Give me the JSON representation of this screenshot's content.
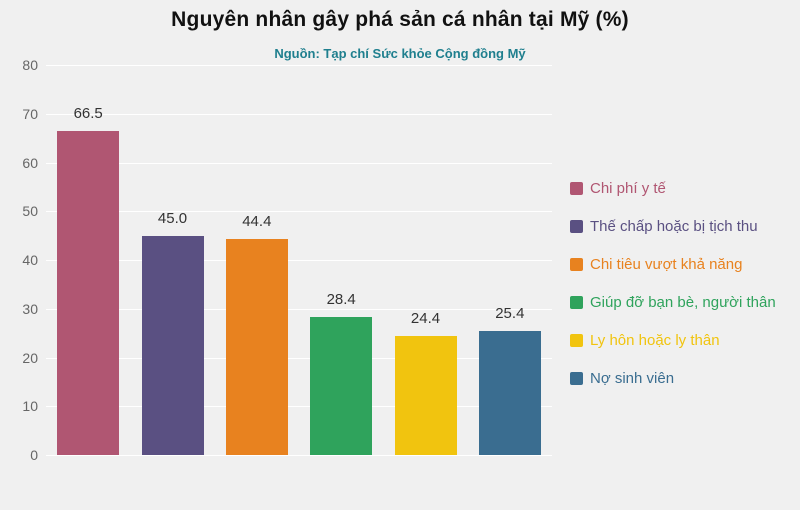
{
  "title": "Nguyên nhân gây phá sản cá nhân tại Mỹ (%)",
  "subtitle": "Nguồn: Tạp chí Sức khỏe Cộng đồng Mỹ",
  "chart_data": {
    "type": "bar",
    "title": "Nguyên nhân gây phá sản cá nhân tại Mỹ (%)",
    "subtitle": "Nguồn: Tạp chí Sức khỏe Cộng đồng Mỹ",
    "categories": [
      "Chi phí y tế",
      "Thế chấp hoặc bị tịch thu",
      "Chi tiêu vượt khả năng",
      "Giúp đỡ bạn bè, người thân",
      "Ly hôn hoặc ly thân",
      "Nợ sinh viên"
    ],
    "values": [
      66.5,
      45,
      44.4,
      28.4,
      24.4,
      25.4
    ],
    "value_labels": [
      "66.5",
      "45.0",
      "44.4",
      "28.4",
      "24.4",
      "25.4"
    ],
    "colors": [
      "#b05672",
      "#5a5082",
      "#e8821f",
      "#2fa35c",
      "#f1c40f",
      "#3a6d90"
    ],
    "xlabel": "",
    "ylabel": "",
    "ylim": [
      0,
      80
    ],
    "ytick_step": 10,
    "yticks": [
      0,
      10,
      20,
      30,
      40,
      50,
      60,
      70,
      80
    ],
    "grid": true,
    "legend_position": "right"
  },
  "theme": {
    "background": "#f0f0f0",
    "gridline": "#ffffff",
    "title_color": "#111111",
    "subtitle_color": "#1f7f8e",
    "tick_color": "#666666",
    "value_label_color": "#333333"
  }
}
